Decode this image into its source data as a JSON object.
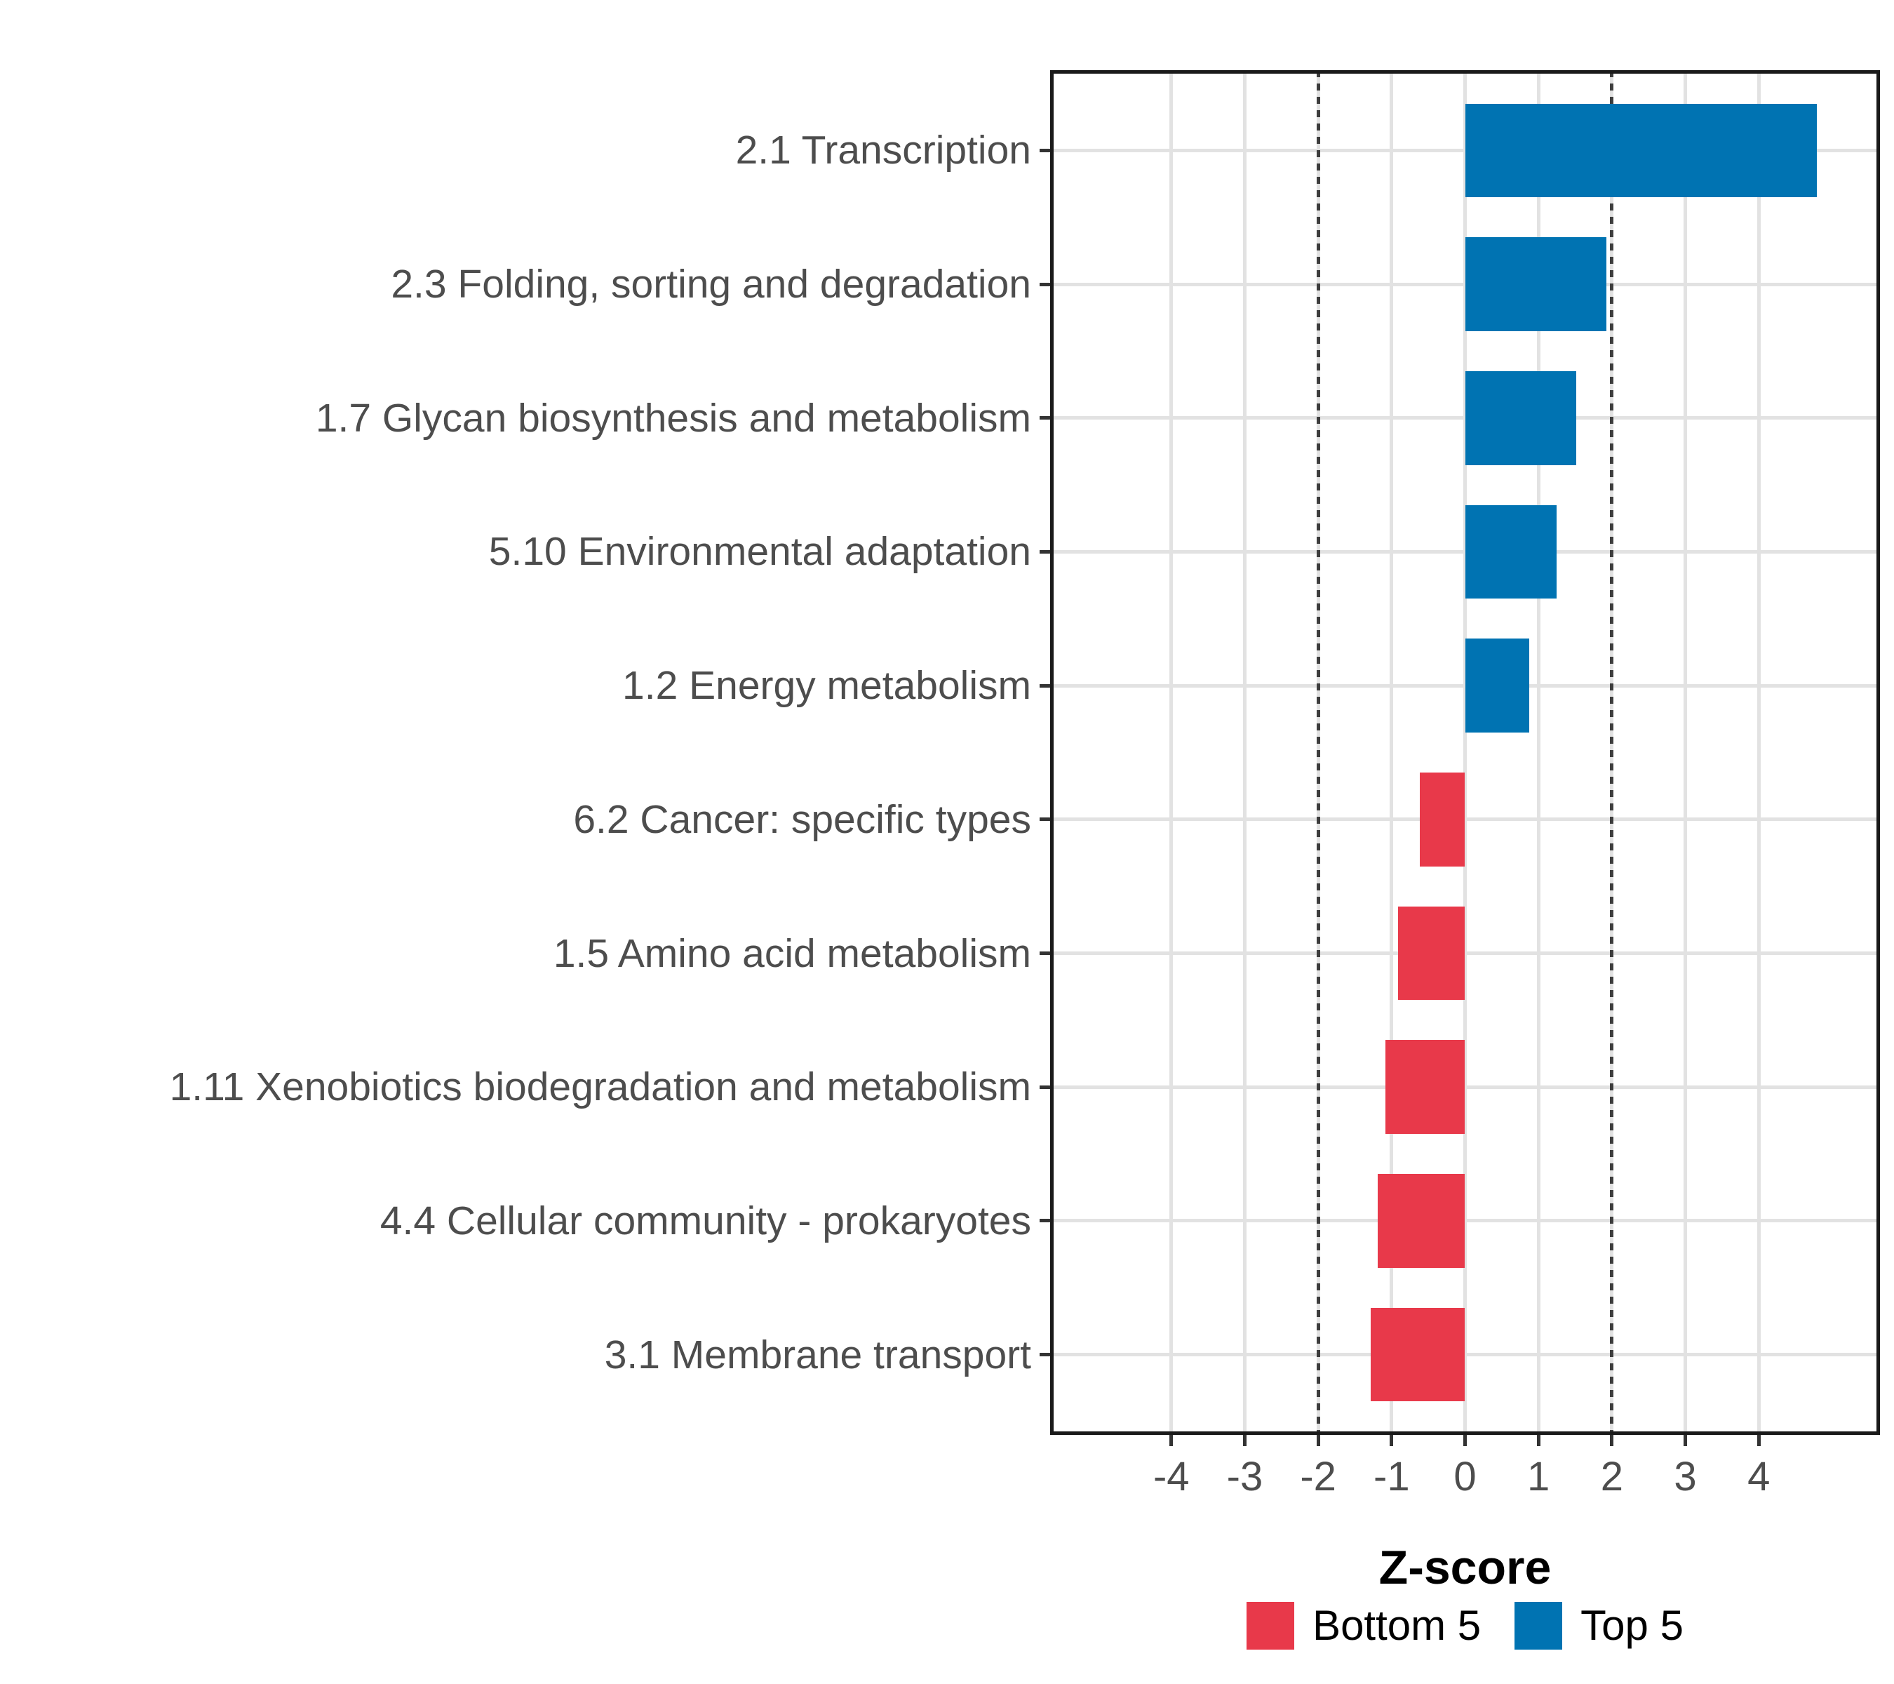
{
  "chart_data": {
    "type": "bar",
    "orientation": "horizontal",
    "title": "",
    "xlabel": "Z-score",
    "categories": [
      "2.1 Transcription",
      "2.3 Folding, sorting and degradation",
      "1.7 Glycan biosynthesis and metabolism",
      "5.10 Environmental adaptation",
      "1.2 Energy metabolism",
      "6.2 Cancer: specific types",
      "1.5 Amino acid metabolism",
      "1.11 Xenobiotics biodegradation and metabolism",
      "4.4 Cellular community - prokaryotes",
      "3.1 Membrane transport"
    ],
    "values": [
      4.79,
      1.92,
      1.51,
      1.25,
      0.87,
      -0.62,
      -0.91,
      -1.08,
      -1.19,
      -1.28
    ],
    "groups": [
      "Top 5",
      "Top 5",
      "Top 5",
      "Top 5",
      "Top 5",
      "Bottom 5",
      "Bottom 5",
      "Bottom 5",
      "Bottom 5",
      "Bottom 5"
    ],
    "x_ticks": [
      -4,
      -3,
      -2,
      -1,
      0,
      1,
      2,
      3,
      4
    ],
    "xlim": [
      -5.65,
      5.65
    ],
    "threshold_lines_x": [
      -2,
      2
    ],
    "grid": "major-only",
    "legend": {
      "position": "bottom",
      "items": [
        {
          "label": "Bottom 5",
          "color": "#E8394A"
        },
        {
          "label": "Top 5",
          "color": "#0073B2"
        }
      ]
    },
    "colors": {
      "Bottom 5": "#E8394A",
      "Top 5": "#0073B2"
    }
  }
}
